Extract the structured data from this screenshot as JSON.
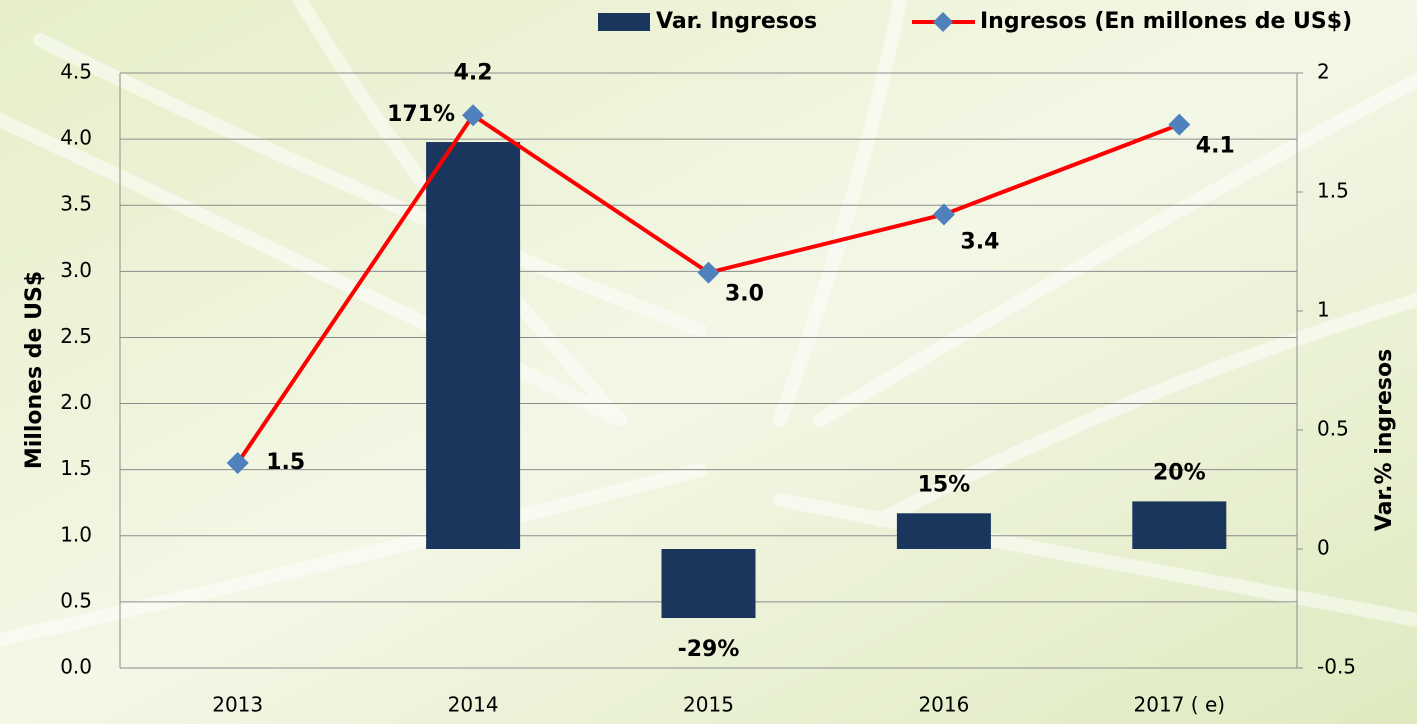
{
  "chart_data": {
    "type": "bar-line",
    "categories": [
      "2013",
      "2014",
      "2015",
      "2016",
      "2017 ( e)"
    ],
    "series": [
      {
        "name": "Var. Ingresos",
        "type": "bar",
        "axis": "y2",
        "color": "#1b365d",
        "values": [
          null,
          1.71,
          -0.29,
          0.15,
          0.2
        ],
        "value_labels": [
          null,
          "171%",
          "-29%",
          "15%",
          "20%"
        ]
      },
      {
        "name": "Ingresos (En millones de US$)",
        "type": "line",
        "axis": "y",
        "color": "#ff0000",
        "marker_color": "#4f81bd",
        "values": [
          1.55,
          4.18,
          2.99,
          3.43,
          4.11
        ],
        "value_labels": [
          "1.5",
          "4.2",
          "3.0",
          "3.4",
          "4.1"
        ]
      }
    ],
    "ylabel": "Millones de US$",
    "y2label": "Var.% ingresos",
    "ylim": [
      0,
      4.5
    ],
    "yticks": [
      {
        "value": 0,
        "label": "0.0"
      },
      0.5,
      {
        "value": 1,
        "label": "1.0"
      },
      1.5,
      {
        "value": 2,
        "label": "2.0"
      },
      2.5,
      {
        "value": 3,
        "label": "3.0"
      },
      3.5,
      {
        "value": 4,
        "label": "4.0"
      },
      4.5
    ],
    "y2lim": [
      -0.5,
      2
    ],
    "y2ticks": [
      -0.5,
      0,
      0.5,
      1,
      1.5,
      2
    ],
    "grid": true,
    "legend": "top"
  }
}
